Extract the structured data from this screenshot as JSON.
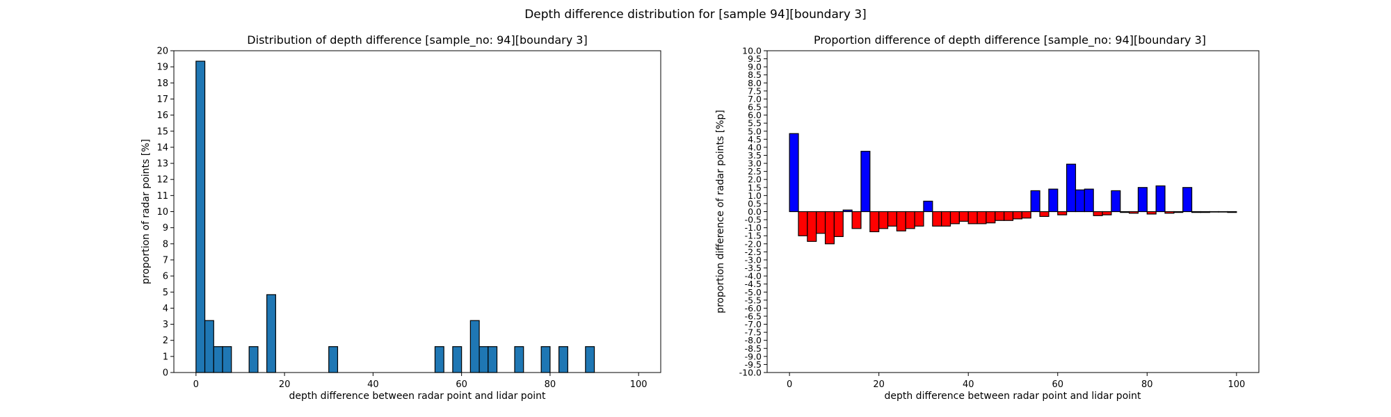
{
  "figure": {
    "suptitle": "Depth difference distribution for [sample 94][boundary 3]"
  },
  "chart_data": [
    {
      "type": "bar",
      "title": "Distribution of depth difference [sample_no: 94][boundary 3]",
      "xlabel": "depth difference between radar point and lidar point",
      "ylabel": "proportion of radar points [%]",
      "xlim": [
        -5,
        105
      ],
      "ylim": [
        0,
        20
      ],
      "xticks": [
        0,
        20,
        40,
        60,
        80,
        100
      ],
      "yticks": [
        0,
        1,
        2,
        3,
        4,
        5,
        6,
        7,
        8,
        9,
        10,
        11,
        12,
        13,
        14,
        15,
        16,
        17,
        18,
        19,
        20
      ],
      "bar_width": 2,
      "bar_color": "#1f77b4",
      "edge_color": "#000000",
      "grid": false,
      "bins": [
        0,
        2,
        4,
        6,
        12,
        16,
        30,
        54,
        58,
        62,
        64,
        66,
        72,
        78,
        82,
        88
      ],
      "values": [
        19.35,
        3.23,
        1.61,
        1.61,
        1.61,
        4.84,
        1.61,
        1.61,
        1.61,
        3.23,
        1.61,
        1.61,
        1.61,
        1.61,
        1.61,
        1.61
      ]
    },
    {
      "type": "bar",
      "title": "Proportion difference of depth difference [sample_no: 94][boundary 3]",
      "xlabel": "depth difference between radar point and lidar point",
      "ylabel": "proportion difference of radar points [%p]",
      "xlim": [
        -5,
        105
      ],
      "ylim": [
        -10,
        10
      ],
      "xticks": [
        0,
        20,
        40,
        60,
        80,
        100
      ],
      "yticks": [
        -10.0,
        -9.5,
        -9.0,
        -8.5,
        -8.0,
        -7.5,
        -7.0,
        -6.5,
        -6.0,
        -5.5,
        -5.0,
        -4.5,
        -4.0,
        -3.5,
        -3.0,
        -2.5,
        -2.0,
        -1.5,
        -1.0,
        -0.5,
        0.0,
        0.5,
        1.0,
        1.5,
        2.0,
        2.5,
        3.0,
        3.5,
        4.0,
        4.5,
        5.0,
        5.5,
        6.0,
        6.5,
        7.0,
        7.5,
        8.0,
        8.5,
        9.0,
        9.5,
        10.0
      ],
      "bar_width": 2,
      "positive_color": "#0000ff",
      "negative_color": "#ff0000",
      "edge_color": "#000000",
      "grid": false,
      "bins": [
        0,
        2,
        4,
        6,
        8,
        10,
        12,
        14,
        16,
        18,
        20,
        22,
        24,
        26,
        28,
        30,
        32,
        34,
        36,
        38,
        40,
        42,
        44,
        46,
        48,
        50,
        52,
        54,
        56,
        58,
        60,
        62,
        64,
        66,
        68,
        70,
        72,
        74,
        76,
        78,
        80,
        82,
        84,
        86,
        88,
        90,
        92,
        94,
        96,
        98
      ],
      "values": [
        4.85,
        -1.5,
        -1.85,
        -1.35,
        -2.0,
        -1.55,
        0.1,
        -1.05,
        3.75,
        -1.25,
        -1.05,
        -0.9,
        -1.2,
        -1.05,
        -0.9,
        0.65,
        -0.9,
        -0.9,
        -0.75,
        -0.6,
        -0.75,
        -0.75,
        -0.7,
        -0.55,
        -0.55,
        -0.45,
        -0.4,
        1.3,
        -0.3,
        1.4,
        -0.2,
        2.95,
        1.35,
        1.4,
        -0.25,
        -0.2,
        1.3,
        -0.05,
        -0.1,
        1.5,
        -0.15,
        1.6,
        -0.1,
        -0.05,
        1.5,
        -0.05,
        -0.05,
        -0.02,
        -0.02,
        -0.05
      ]
    }
  ]
}
